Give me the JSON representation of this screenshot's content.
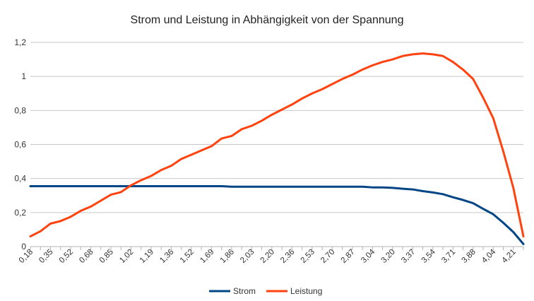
{
  "chart_data": {
    "type": "line",
    "title": "Strom und Leistung in Abhängigkeit von der Spannung",
    "xlabel": "",
    "ylabel": "",
    "ylim": [
      0,
      1.2
    ],
    "y_ticks": [
      "0",
      "0,2",
      "0,4",
      "0,6",
      "0,8",
      "1",
      "1,2"
    ],
    "grid": true,
    "legend_position": "bottom",
    "x": [
      0.18,
      0.26,
      0.35,
      0.43,
      0.52,
      0.6,
      0.68,
      0.77,
      0.85,
      0.94,
      1.02,
      1.1,
      1.19,
      1.27,
      1.36,
      1.44,
      1.52,
      1.61,
      1.69,
      1.78,
      1.86,
      1.95,
      2.03,
      2.11,
      2.2,
      2.28,
      2.36,
      2.45,
      2.53,
      2.62,
      2.7,
      2.78,
      2.87,
      2.95,
      3.04,
      3.12,
      3.2,
      3.29,
      3.37,
      3.46,
      3.54,
      3.62,
      3.71,
      3.79,
      3.88,
      3.96,
      4.04,
      4.13,
      4.21,
      4.3
    ],
    "x_tick_labels": [
      "0,18",
      "0,35",
      "0,52",
      "0,68",
      "0,85",
      "1,02",
      "1,19",
      "1,36",
      "1,52",
      "1,69",
      "1,86",
      "2,03",
      "2,20",
      "2,36",
      "2,53",
      "2,70",
      "2,87",
      "3,04",
      "3,20",
      "3,37",
      "3,54",
      "3,71",
      "3,88",
      "4,04",
      "4,21"
    ],
    "series": [
      {
        "name": "Strom",
        "color": "#004586",
        "values": [
          0.355,
          0.355,
          0.355,
          0.355,
          0.355,
          0.355,
          0.355,
          0.355,
          0.355,
          0.355,
          0.355,
          0.355,
          0.355,
          0.355,
          0.355,
          0.355,
          0.355,
          0.355,
          0.355,
          0.355,
          0.352,
          0.352,
          0.352,
          0.352,
          0.352,
          0.352,
          0.352,
          0.352,
          0.352,
          0.352,
          0.352,
          0.352,
          0.352,
          0.352,
          0.348,
          0.348,
          0.345,
          0.34,
          0.336,
          0.326,
          0.318,
          0.308,
          0.29,
          0.274,
          0.255,
          0.222,
          0.19,
          0.14,
          0.085,
          0.015
        ]
      },
      {
        "name": "Leistung",
        "color": "#ff420e",
        "values": [
          0.06,
          0.09,
          0.135,
          0.15,
          0.175,
          0.21,
          0.235,
          0.27,
          0.305,
          0.32,
          0.36,
          0.39,
          0.415,
          0.45,
          0.475,
          0.515,
          0.54,
          0.565,
          0.59,
          0.635,
          0.65,
          0.69,
          0.71,
          0.74,
          0.775,
          0.805,
          0.835,
          0.87,
          0.9,
          0.925,
          0.955,
          0.985,
          1.01,
          1.04,
          1.065,
          1.085,
          1.1,
          1.12,
          1.13,
          1.135,
          1.13,
          1.12,
          1.085,
          1.04,
          0.985,
          0.875,
          0.755,
          0.56,
          0.345,
          0.06
        ]
      }
    ]
  }
}
